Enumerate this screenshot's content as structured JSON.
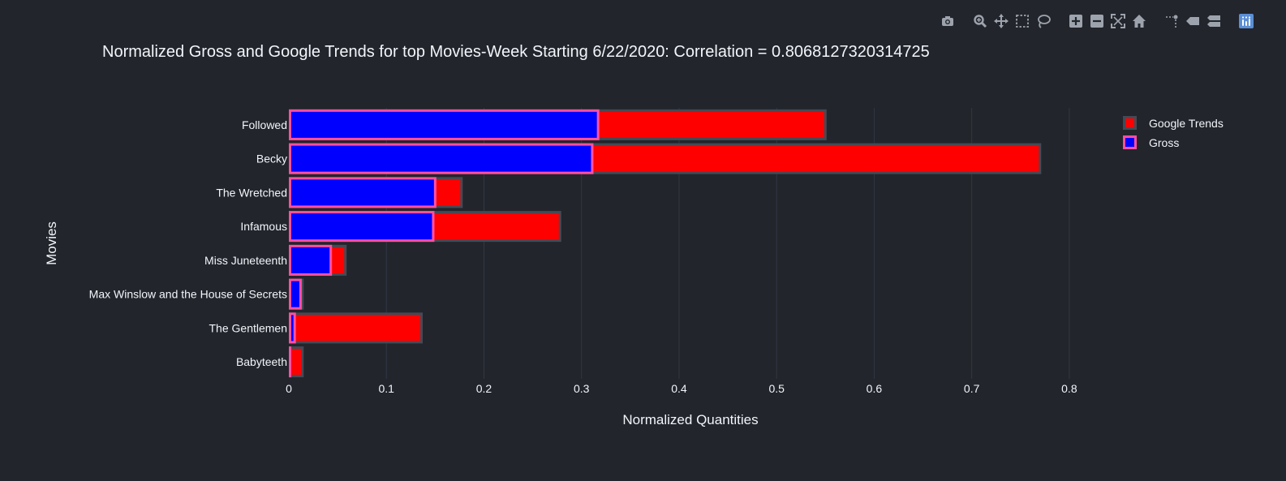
{
  "modebar": {
    "buttons": [
      {
        "name": "camera-icon",
        "group": 0
      },
      {
        "name": "zoom-icon",
        "group": 1
      },
      {
        "name": "pan-icon",
        "group": 1
      },
      {
        "name": "box-select-icon",
        "group": 1
      },
      {
        "name": "lasso-select-icon",
        "group": 1
      },
      {
        "name": "zoom-in-icon",
        "group": 2
      },
      {
        "name": "zoom-out-icon",
        "group": 2
      },
      {
        "name": "autoscale-icon",
        "group": 2
      },
      {
        "name": "reset-axes-icon",
        "group": 2
      },
      {
        "name": "spike-lines-icon",
        "group": 3
      },
      {
        "name": "hover-closest-icon",
        "group": 3
      },
      {
        "name": "hover-compare-icon",
        "group": 3
      },
      {
        "name": "plotly-logo-icon",
        "group": 4
      }
    ],
    "icon_color": "#9da3ad",
    "logo_color": "#5b8fd6"
  },
  "chart_data": {
    "type": "bar",
    "orientation": "horizontal",
    "barmode": "overlay",
    "title": "Normalized Gross and Google Trends for top Movies-Week Starting 6/22/2020: Correlation = 0.8068127320314725",
    "xlabel": "Normalized Quantities",
    "ylabel": "Movies",
    "xlim": [
      0,
      0.85
    ],
    "xticks": [
      0,
      0.1,
      0.2,
      0.3,
      0.4,
      0.5,
      0.6,
      0.7,
      0.8
    ],
    "xtick_labels": [
      "0",
      "0.1",
      "0.2",
      "0.3",
      "0.4",
      "0.5",
      "0.6",
      "0.7",
      "0.8"
    ],
    "categories": [
      "Followed",
      "Becky",
      "The Wretched",
      "Infamous",
      "Miss Juneteenth",
      "Max Winslow and the House of Secrets",
      "The Gentlemen",
      "Babyteeth"
    ],
    "series": [
      {
        "name": "Google Trends",
        "values": [
          0.55,
          0.77,
          0.177,
          0.278,
          0.058,
          0.014,
          0.136,
          0.014
        ],
        "fill": "#ff0000",
        "outline": "#444a55"
      },
      {
        "name": "Gross",
        "values": [
          0.317,
          0.311,
          0.15,
          0.148,
          0.043,
          0.012,
          0.006,
          0.0
        ],
        "fill": "#0000ff",
        "outline": "#ff4fa0"
      }
    ],
    "grid": true,
    "gridColor": "#303845",
    "legend_position": "top-right"
  }
}
